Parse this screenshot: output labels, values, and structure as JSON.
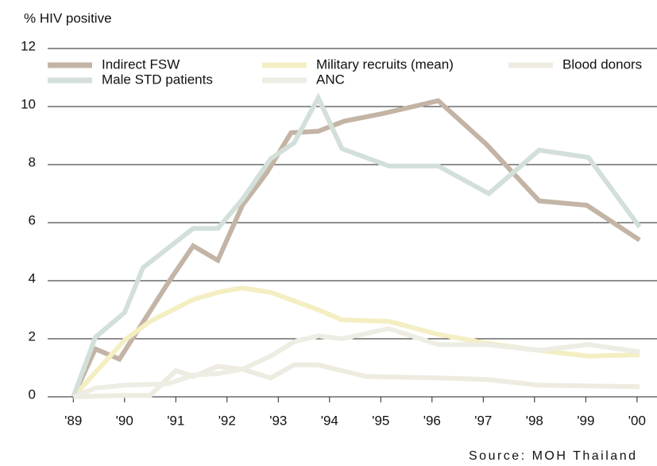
{
  "chart_data": {
    "type": "line",
    "title": "% HIV positive",
    "source": "Source: MOH Thailand",
    "xlim": [
      1988.5,
      2000.39
    ],
    "xticks": [
      {
        "value": 1989,
        "label": "'89"
      },
      {
        "value": 1990,
        "label": "'90"
      },
      {
        "value": 1991,
        "label": "'91"
      },
      {
        "value": 1992,
        "label": "'92"
      },
      {
        "value": 1993,
        "label": "'93"
      },
      {
        "value": 1994,
        "label": "'94"
      },
      {
        "value": 1995,
        "label": "'95"
      },
      {
        "value": 1996,
        "label": "'96"
      },
      {
        "value": 1997,
        "label": "'97"
      },
      {
        "value": 1998,
        "label": "'98"
      },
      {
        "value": 1999,
        "label": "'99"
      },
      {
        "value": 2000,
        "label": "'00"
      }
    ],
    "ylim": [
      0,
      12
    ],
    "yticks": [
      0,
      2,
      4,
      6,
      8,
      10,
      12
    ],
    "grid": true,
    "series": [
      {
        "name": "Indirect FSW",
        "color": "#c3b4a5",
        "x": [
          1989,
          1989.43,
          1989.9,
          1990.86,
          1991.34,
          1991.82,
          1992.3,
          1992.77,
          1993.25,
          1993.78,
          1994.29,
          1995.02,
          1996.12,
          1997.06,
          1998.09,
          1999.02,
          2000.05
        ],
        "values": [
          0,
          1.65,
          1.3,
          3.95,
          5.2,
          4.7,
          6.6,
          7.7,
          9.1,
          9.15,
          9.5,
          9.75,
          10.2,
          8.7,
          6.75,
          6.6,
          5.4
        ]
      },
      {
        "name": "Military recruits (mean)",
        "color": "#f4eec3",
        "x": [
          1989,
          1990,
          1990.5,
          1991.34,
          1991.82,
          1992.3,
          1992.85,
          1993.78,
          1994.24,
          1995.16,
          1996.12,
          1997.06,
          1998.09,
          1999.05,
          2000.05
        ],
        "values": [
          0,
          1.95,
          2.6,
          3.35,
          3.6,
          3.75,
          3.6,
          3.0,
          2.65,
          2.6,
          2.15,
          1.85,
          1.6,
          1.4,
          1.45
        ]
      },
      {
        "name": "Blood donors",
        "color": "#eeebe1",
        "x": [
          1989,
          1990,
          1990.5,
          1991,
          1991.34,
          1991.82,
          1992.3,
          1992.85,
          1993.31,
          1993.78,
          1994.71,
          1996.12,
          1997.06,
          1998.09,
          2000.05
        ],
        "values": [
          0,
          0.05,
          0.05,
          0.9,
          0.7,
          1.05,
          0.95,
          0.65,
          1.1,
          1.1,
          0.7,
          0.65,
          0.6,
          0.4,
          0.35
        ]
      },
      {
        "name": "Male STD patients",
        "color": "#d3e0da",
        "x": [
          1989,
          1989.43,
          1990,
          1990.36,
          1991.34,
          1991.82,
          1992.3,
          1992.85,
          1993.31,
          1993.78,
          1994.24,
          1995.16,
          1996.12,
          1997.108,
          1998.09,
          1999.05,
          2000.05
        ],
        "values": [
          0,
          2.05,
          2.9,
          4.45,
          5.8,
          5.8,
          6.8,
          8.2,
          8.75,
          10.3,
          8.55,
          7.95,
          7.95,
          7.0,
          8.5,
          8.25,
          5.85
        ]
      },
      {
        "name": "ANC",
        "color": "#ededE4",
        "x": [
          1989,
          1989.43,
          1990,
          1990.86,
          1991.34,
          1991.82,
          1992.3,
          1992.85,
          1993.31,
          1993.78,
          1994.24,
          1995.16,
          1996.12,
          1997.06,
          1998.09,
          1999.05,
          2000.05
        ],
        "values": [
          0,
          0.3,
          0.4,
          0.45,
          0.75,
          0.8,
          0.95,
          1.4,
          1.9,
          2.1,
          2.0,
          2.35,
          1.8,
          1.8,
          1.6,
          1.8,
          1.55
        ]
      }
    ]
  }
}
